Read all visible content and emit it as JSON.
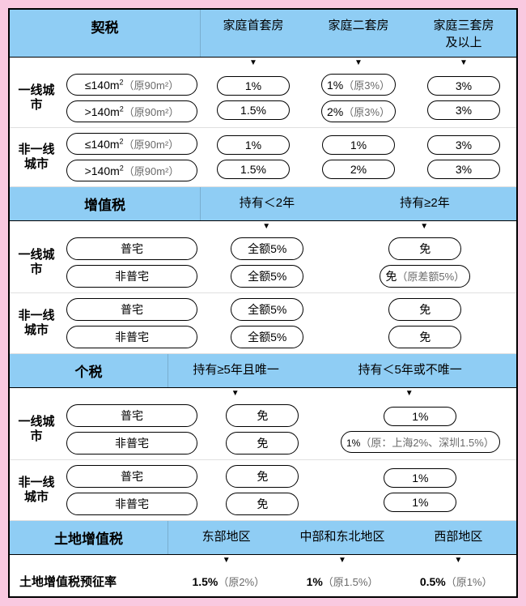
{
  "colors": {
    "header_bg": "#8fcdf4",
    "outer_bg": "#f9c9e0",
    "border": "#000000",
    "sub_text": "#6a6a6a"
  },
  "layout": {
    "label_width": 66,
    "spec_width": 170
  },
  "sections": [
    {
      "title": "契税",
      "title_width": 236,
      "columns": [
        "家庭首套房",
        "家庭二套房",
        "家庭三套房\n及以上"
      ],
      "col_flex": [
        1,
        1,
        1
      ],
      "groups": [
        {
          "label": "一线城市",
          "rows": [
            {
              "spec": {
                "main": "≤140m²",
                "sub": "（原90m²）"
              },
              "cells": [
                {
                  "main": "1%"
                },
                {
                  "main": "1%",
                  "sub": "（原3%）"
                },
                {
                  "main": "3%"
                }
              ]
            },
            {
              "spec": {
                "main": ">140m²",
                "sub": "（原90m²）"
              },
              "cells": [
                {
                  "main": "1.5%"
                },
                {
                  "main": "2%",
                  "sub": "（原3%）"
                },
                {
                  "main": "3%"
                }
              ]
            }
          ]
        },
        {
          "label": "非一线\n城市",
          "rows": [
            {
              "spec": {
                "main": "≤140m²",
                "sub": "（原90m²）"
              },
              "cells": [
                {
                  "main": "1%"
                },
                {
                  "main": "1%"
                },
                {
                  "main": "3%"
                }
              ]
            },
            {
              "spec": {
                "main": ">140m²",
                "sub": "（原90m²）"
              },
              "cells": [
                {
                  "main": "1.5%"
                },
                {
                  "main": "2%"
                },
                {
                  "main": "3%"
                }
              ]
            }
          ]
        }
      ]
    },
    {
      "title": "增值税",
      "title_width": 236,
      "columns": [
        "持有＜2年",
        "持有≥2年"
      ],
      "col_flex": [
        1,
        1.4
      ],
      "groups": [
        {
          "label": "一线城市",
          "rows": [
            {
              "spec": {
                "main": "普宅"
              },
              "cells": [
                {
                  "main": "全额5%"
                },
                {
                  "main": "免"
                }
              ]
            },
            {
              "spec": {
                "main": "非普宅"
              },
              "cells": [
                {
                  "main": "全额5%"
                },
                {
                  "main": "免",
                  "sub": "（原差额5%）"
                }
              ]
            }
          ]
        },
        {
          "label": "非一线\n城市",
          "rows": [
            {
              "spec": {
                "main": "普宅"
              },
              "cells": [
                {
                  "main": "全额5%"
                },
                {
                  "main": "免"
                }
              ]
            },
            {
              "spec": {
                "main": "非普宅"
              },
              "cells": [
                {
                  "main": "全额5%"
                },
                {
                  "main": "免"
                }
              ]
            }
          ]
        }
      ]
    },
    {
      "title": "个税",
      "title_width": 196,
      "columns": [
        "持有≥5年且唯一",
        "持有＜5年或不唯一"
      ],
      "col_flex": [
        1,
        1.6
      ],
      "groups": [
        {
          "label": "一线城市",
          "rows": [
            {
              "spec": {
                "main": "普宅"
              },
              "cells": [
                {
                  "main": "免"
                },
                {
                  "main": "1%"
                }
              ]
            },
            {
              "spec": {
                "main": "非普宅"
              },
              "cells": [
                {
                  "main": "免"
                },
                {
                  "main": "1%",
                  "sub": "（原：上海2%、深圳1.5%）",
                  "small": true
                }
              ]
            }
          ]
        },
        {
          "label": "非一线\n城市",
          "rows": [
            {
              "spec": {
                "main": "普宅"
              },
              "cells": [
                {
                  "main": "免"
                },
                {
                  "main": "1%"
                }
              ]
            },
            {
              "spec": {
                "main": "非普宅"
              },
              "cells": [
                {
                  "main": "免"
                },
                {
                  "main": "1%"
                }
              ]
            }
          ]
        }
      ]
    }
  ],
  "land_tax": {
    "title": "土地增值税",
    "title_width": 196,
    "columns": [
      "东部地区",
      "中部和东北地区",
      "西部地区"
    ],
    "footer_label": "土地增值税预征率",
    "cells": [
      {
        "main": "1.5%",
        "sub": "（原2%）"
      },
      {
        "main": "1%",
        "sub": "（原1.5%）"
      },
      {
        "main": "0.5%",
        "sub": "（原1%）"
      }
    ]
  }
}
